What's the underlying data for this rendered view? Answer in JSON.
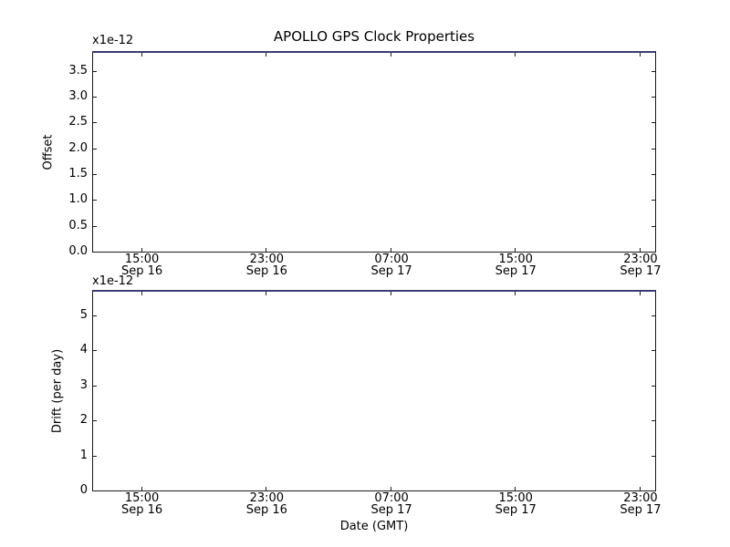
{
  "chart_data": [
    {
      "type": "line",
      "subplot": "top",
      "title": "APOLLO GPS Clock Properties",
      "ylabel": "Offset",
      "y_offset_text": "x1e-12",
      "ylim": [
        0.0,
        3.85
      ],
      "y_ticks": [
        {
          "label": "0.0",
          "value": 0.0
        },
        {
          "label": "0.5",
          "value": 0.5
        },
        {
          "label": "1.0",
          "value": 1.0
        },
        {
          "label": "1.5",
          "value": 1.5
        },
        {
          "label": "2.0",
          "value": 2.0
        },
        {
          "label": "2.5",
          "value": 2.5
        },
        {
          "label": "3.0",
          "value": 3.0
        },
        {
          "label": "3.5",
          "value": 3.5
        }
      ],
      "x_ticks": [
        {
          "time": "15:00",
          "date": "Sep 16",
          "frac": 0.087
        },
        {
          "time": "23:00",
          "date": "Sep 16",
          "frac": 0.309
        },
        {
          "time": "07:00",
          "date": "Sep 17",
          "frac": 0.531
        },
        {
          "time": "15:00",
          "date": "Sep 17",
          "frac": 0.752
        },
        {
          "time": "23:00",
          "date": "Sep 17",
          "frac": 0.974
        }
      ],
      "series": [],
      "grid": false,
      "legend": null
    },
    {
      "type": "line",
      "subplot": "bottom",
      "ylabel": "Drift (per day)",
      "xlabel": "Date (GMT)",
      "y_offset_text": "x1e-12",
      "ylim": [
        0.0,
        5.67
      ],
      "y_ticks": [
        {
          "label": "0",
          "value": 0
        },
        {
          "label": "1",
          "value": 1
        },
        {
          "label": "2",
          "value": 2
        },
        {
          "label": "3",
          "value": 3
        },
        {
          "label": "4",
          "value": 4
        },
        {
          "label": "5",
          "value": 5
        }
      ],
      "x_ticks": [
        {
          "time": "15:00",
          "date": "Sep 16",
          "frac": 0.087
        },
        {
          "time": "23:00",
          "date": "Sep 16",
          "frac": 0.309
        },
        {
          "time": "07:00",
          "date": "Sep 17",
          "frac": 0.531
        },
        {
          "time": "15:00",
          "date": "Sep 17",
          "frac": 0.752
        },
        {
          "time": "23:00",
          "date": "Sep 17",
          "frac": 0.974
        }
      ],
      "series": [],
      "grid": false,
      "legend": null
    }
  ],
  "colors": {
    "background": "#ffffff",
    "spine": "#1a1a1a",
    "top_spine_line": "#3c3c74",
    "text": "#000000"
  }
}
